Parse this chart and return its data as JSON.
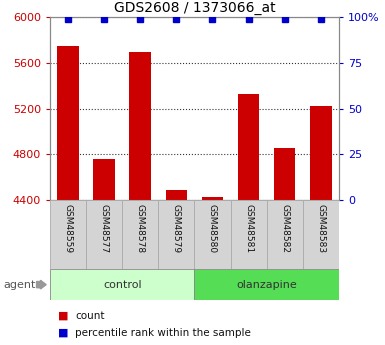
{
  "title": "GDS2608 / 1373066_at",
  "samples": [
    "GSM48559",
    "GSM48577",
    "GSM48578",
    "GSM48579",
    "GSM48580",
    "GSM48581",
    "GSM48582",
    "GSM48583"
  ],
  "counts": [
    5750,
    4760,
    5700,
    4490,
    4430,
    5330,
    4860,
    5220
  ],
  "percentile_ranks": [
    99,
    99,
    99,
    99,
    99,
    99,
    99,
    99
  ],
  "ylim_left": [
    4400,
    6000
  ],
  "ylim_right": [
    0,
    100
  ],
  "yticks_left": [
    4400,
    4800,
    5200,
    5600,
    6000
  ],
  "yticks_right": [
    0,
    25,
    50,
    75,
    100
  ],
  "ytick_right_labels": [
    "0",
    "25",
    "50",
    "75",
    "100%"
  ],
  "bar_color": "#cc0000",
  "dot_color": "#0000cc",
  "bar_width": 0.6,
  "groups": [
    {
      "label": "control",
      "start": 0,
      "end": 3,
      "color": "#ccffcc"
    },
    {
      "label": "olanzapine",
      "start": 4,
      "end": 7,
      "color": "#55dd55"
    }
  ],
  "agent_label": "agent",
  "title_color": "#000000",
  "left_axis_color": "#cc0000",
  "right_axis_color": "#0000cc",
  "grid_color": "#000000",
  "background_color": "#ffffff",
  "sample_box_color": "#d4d4d4",
  "sample_box_edge": "#aaaaaa",
  "legend_count_color": "#cc0000",
  "legend_pct_color": "#0000cc"
}
